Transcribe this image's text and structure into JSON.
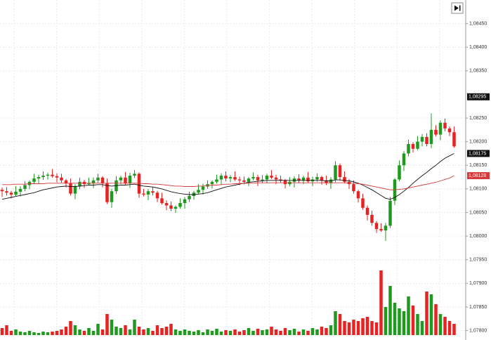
{
  "chart_data": {
    "type": "candlestick",
    "ylim": [
      1.0778,
      1.085
    ],
    "yticks": [
      {
        "value": 1.0845,
        "label": "1,08450"
      },
      {
        "value": 1.084,
        "label": "1,08400"
      },
      {
        "value": 1.0835,
        "label": "1,08350"
      },
      {
        "value": 1.0825,
        "label": "1,08250"
      },
      {
        "value": 1.082,
        "label": "1,08200"
      },
      {
        "value": 1.0815,
        "label": "1,08150"
      },
      {
        "value": 1.081,
        "label": "1,08100"
      },
      {
        "value": 1.0805,
        "label": "1,08050"
      },
      {
        "value": 1.08,
        "label": "1,08000"
      },
      {
        "value": 1.0795,
        "label": "1,07950"
      },
      {
        "value": 1.079,
        "label": "1,07900"
      },
      {
        "value": 1.0785,
        "label": "1,07850"
      },
      {
        "value": 1.078,
        "label": "1,07800"
      }
    ],
    "grid": true,
    "up_color": "#1f9a1f",
    "down_color": "#e62222",
    "candles": [
      [
        1.08098,
        1.08103,
        1.08083,
        1.08095
      ],
      [
        1.08095,
        1.08104,
        1.08086,
        1.08092
      ],
      [
        1.08092,
        1.08096,
        1.0808,
        1.08088
      ],
      [
        1.08088,
        1.08106,
        1.08085,
        1.08094
      ],
      [
        1.08094,
        1.08106,
        1.08084,
        1.081
      ],
      [
        1.081,
        1.08116,
        1.08095,
        1.08108
      ],
      [
        1.08108,
        1.08118,
        1.08099,
        1.08115
      ],
      [
        1.08115,
        1.08132,
        1.08111,
        1.08122
      ],
      [
        1.08122,
        1.0813,
        1.0811,
        1.08125
      ],
      [
        1.08125,
        1.08137,
        1.08119,
        1.08128
      ],
      [
        1.08128,
        1.08134,
        1.0812,
        1.0813
      ],
      [
        1.0813,
        1.08142,
        1.08124,
        1.08127
      ],
      [
        1.08127,
        1.08133,
        1.08114,
        1.08124
      ],
      [
        1.08124,
        1.08132,
        1.08113,
        1.08118
      ],
      [
        1.08118,
        1.08121,
        1.08103,
        1.08112
      ],
      [
        1.08112,
        1.08122,
        1.08086,
        1.0809
      ],
      [
        1.0809,
        1.0811,
        1.08078,
        1.08105
      ],
      [
        1.08105,
        1.08124,
        1.08099,
        1.08115
      ],
      [
        1.08115,
        1.08119,
        1.08102,
        1.0811
      ],
      [
        1.0811,
        1.08124,
        1.08107,
        1.08112
      ],
      [
        1.08112,
        1.08124,
        1.08102,
        1.08118
      ],
      [
        1.08118,
        1.08132,
        1.08113,
        1.08124
      ],
      [
        1.08124,
        1.08127,
        1.08103,
        1.08112
      ],
      [
        1.08112,
        1.08122,
        1.08068,
        1.08072
      ],
      [
        1.08072,
        1.081,
        1.0806,
        1.08095
      ],
      [
        1.08095,
        1.08127,
        1.08089,
        1.08118
      ],
      [
        1.08118,
        1.08128,
        1.0811,
        1.08124
      ],
      [
        1.08124,
        1.08136,
        1.08109,
        1.08112
      ],
      [
        1.08112,
        1.08134,
        1.08102,
        1.08128
      ],
      [
        1.08128,
        1.0814,
        1.08123,
        1.08132
      ],
      [
        1.08132,
        1.08135,
        1.08081,
        1.0809
      ],
      [
        1.0809,
        1.081,
        1.08084,
        1.08088
      ],
      [
        1.08088,
        1.081,
        1.08076,
        1.08095
      ],
      [
        1.08095,
        1.08104,
        1.08086,
        1.08092
      ],
      [
        1.08092,
        1.08096,
        1.08072,
        1.0808
      ],
      [
        1.0808,
        1.08092,
        1.08067,
        1.0807
      ],
      [
        1.0807,
        1.08076,
        1.08055,
        1.08065
      ],
      [
        1.08065,
        1.08073,
        1.08053,
        1.08058
      ],
      [
        1.08058,
        1.08065,
        1.08049,
        1.08062
      ],
      [
        1.08062,
        1.0808,
        1.08058,
        1.0807
      ],
      [
        1.0807,
        1.08083,
        1.08058,
        1.08078
      ],
      [
        1.08078,
        1.08094,
        1.08072,
        1.08085
      ],
      [
        1.08085,
        1.08096,
        1.08077,
        1.08092
      ],
      [
        1.08092,
        1.0811,
        1.08089,
        1.08098
      ],
      [
        1.08098,
        1.08111,
        1.08088,
        1.08105
      ],
      [
        1.08105,
        1.08118,
        1.081,
        1.0811
      ],
      [
        1.0811,
        1.08118,
        1.08101,
        1.08115
      ],
      [
        1.08115,
        1.0813,
        1.08111,
        1.0812
      ],
      [
        1.0812,
        1.08133,
        1.08108,
        1.08128
      ],
      [
        1.08128,
        1.08137,
        1.08116,
        1.08122
      ],
      [
        1.08122,
        1.08129,
        1.08114,
        1.08125
      ],
      [
        1.08125,
        1.08137,
        1.08117,
        1.0812
      ],
      [
        1.0812,
        1.08126,
        1.08108,
        1.08118
      ],
      [
        1.08118,
        1.08126,
        1.0811,
        1.08115
      ],
      [
        1.08115,
        1.08125,
        1.08106,
        1.08122
      ],
      [
        1.08122,
        1.08135,
        1.08118,
        1.08125
      ],
      [
        1.08125,
        1.0813,
        1.08106,
        1.08118
      ],
      [
        1.08118,
        1.08129,
        1.08112,
        1.0812
      ],
      [
        1.0812,
        1.08132,
        1.08112,
        1.08128
      ],
      [
        1.08128,
        1.0814,
        1.08121,
        1.08124
      ],
      [
        1.08124,
        1.0813,
        1.0811,
        1.0812
      ],
      [
        1.0812,
        1.08128,
        1.08113,
        1.08118
      ],
      [
        1.08118,
        1.08121,
        1.08101,
        1.0811
      ],
      [
        1.0811,
        1.08125,
        1.08106,
        1.08115
      ],
      [
        1.08115,
        1.08127,
        1.08103,
        1.08122
      ],
      [
        1.08122,
        1.08131,
        1.08112,
        1.08118
      ],
      [
        1.08118,
        1.08128,
        1.0811,
        1.08124
      ],
      [
        1.08124,
        1.08136,
        1.08113,
        1.08116
      ],
      [
        1.08116,
        1.08126,
        1.08106,
        1.0812
      ],
      [
        1.0812,
        1.08133,
        1.08115,
        1.08125
      ],
      [
        1.08125,
        1.08128,
        1.08109,
        1.08118
      ],
      [
        1.08118,
        1.08128,
        1.08108,
        1.08112
      ],
      [
        1.08112,
        1.08125,
        1.081,
        1.0812
      ],
      [
        1.0812,
        1.08159,
        1.08114,
        1.0815
      ],
      [
        1.0815,
        1.08154,
        1.08117,
        1.08125
      ],
      [
        1.08125,
        1.08137,
        1.08112,
        1.08115
      ],
      [
        1.08115,
        1.08121,
        1.081,
        1.0811
      ],
      [
        1.0811,
        1.08118,
        1.0809,
        1.08095
      ],
      [
        1.08095,
        1.08098,
        1.08071,
        1.0808
      ],
      [
        1.0808,
        1.0809,
        1.08056,
        1.0806
      ],
      [
        1.0806,
        1.08065,
        1.08033,
        1.08045
      ],
      [
        1.08045,
        1.08054,
        1.08022,
        1.08028
      ],
      [
        1.08028,
        1.08032,
        1.08007,
        1.08015
      ],
      [
        1.08015,
        1.08027,
        1.08009,
        1.08012
      ],
      [
        1.08012,
        1.08028,
        1.0799,
        1.08022
      ],
      [
        1.08022,
        1.08083,
        1.08017,
        1.08075
      ],
      [
        1.08075,
        1.08123,
        1.08066,
        1.0812
      ],
      [
        1.0812,
        1.0816,
        1.08116,
        1.0815
      ],
      [
        1.0815,
        1.0818,
        1.08138,
        1.08175
      ],
      [
        1.08175,
        1.08204,
        1.08169,
        1.08195
      ],
      [
        1.08195,
        1.08199,
        1.08177,
        1.08185
      ],
      [
        1.08185,
        1.08212,
        1.08182,
        1.082
      ],
      [
        1.082,
        1.08216,
        1.0819,
        1.0821
      ],
      [
        1.0821,
        1.08218,
        1.0819,
        1.08195
      ],
      [
        1.08195,
        1.0826,
        1.08186,
        1.08225
      ],
      [
        1.08225,
        1.08235,
        1.08211,
        1.08215
      ],
      [
        1.08215,
        1.08245,
        1.08203,
        1.0824
      ],
      [
        1.0824,
        1.08249,
        1.08222,
        1.08228
      ],
      [
        1.08228,
        1.08232,
        1.08212,
        1.0822
      ],
      [
        1.0822,
        1.08232,
        1.08187,
        1.0819
      ]
    ],
    "series": [
      {
        "color": "#111111",
        "values": [
          1.08078,
          1.0808,
          1.08082,
          1.08084,
          1.08086,
          1.08088,
          1.0809,
          1.08092,
          1.08095,
          1.08098,
          1.081,
          1.08102,
          1.08104,
          1.08105,
          1.08106,
          1.08105,
          1.08105,
          1.08106,
          1.08107,
          1.08108,
          1.08108,
          1.08109,
          1.08109,
          1.08107,
          1.08106,
          1.08107,
          1.08108,
          1.08108,
          1.08109,
          1.0811,
          1.08108,
          1.08106,
          1.08105,
          1.08104,
          1.08102,
          1.081,
          1.08097,
          1.08094,
          1.08092,
          1.0809,
          1.08089,
          1.08088,
          1.08088,
          1.08089,
          1.0809,
          1.08092,
          1.08095,
          1.08098,
          1.08101,
          1.08104,
          1.08106,
          1.08108,
          1.0811,
          1.08112,
          1.08114,
          1.08115,
          1.08116,
          1.08117,
          1.08118,
          1.08118,
          1.08118,
          1.08118,
          1.08118,
          1.08118,
          1.08118,
          1.08118,
          1.08118,
          1.08118,
          1.08118,
          1.08118,
          1.08118,
          1.08117,
          1.08117,
          1.08119,
          1.08119,
          1.08118,
          1.08117,
          1.08115,
          1.08112,
          1.08108,
          1.08103,
          1.08098,
          1.08092,
          1.08086,
          1.0808,
          1.08078,
          1.08082,
          1.08088,
          1.08095,
          1.08103,
          1.08112,
          1.0812,
          1.08128,
          1.08135,
          1.08143,
          1.0815,
          1.08158,
          1.08165,
          1.0817,
          1.08175
        ]
      },
      {
        "color": "#d43a3a",
        "values": [
          1.08109,
          1.08109,
          1.08109,
          1.0811,
          1.0811,
          1.0811,
          1.08111,
          1.08111,
          1.08111,
          1.08111,
          1.08112,
          1.08112,
          1.08112,
          1.08112,
          1.08112,
          1.08112,
          1.08112,
          1.08112,
          1.08112,
          1.08112,
          1.08112,
          1.08112,
          1.08112,
          1.08112,
          1.08112,
          1.08112,
          1.08112,
          1.08112,
          1.08112,
          1.08112,
          1.08112,
          1.08111,
          1.08111,
          1.0811,
          1.0811,
          1.08109,
          1.08108,
          1.08107,
          1.08106,
          1.08106,
          1.08105,
          1.08105,
          1.08105,
          1.08106,
          1.08106,
          1.08107,
          1.08108,
          1.08108,
          1.08109,
          1.0811,
          1.0811,
          1.08111,
          1.08111,
          1.08112,
          1.08112,
          1.08112,
          1.08113,
          1.08113,
          1.08113,
          1.08113,
          1.08113,
          1.08113,
          1.08113,
          1.08113,
          1.08113,
          1.08113,
          1.08113,
          1.08113,
          1.08113,
          1.08113,
          1.08113,
          1.08113,
          1.08113,
          1.08113,
          1.08113,
          1.08113,
          1.08112,
          1.08112,
          1.08111,
          1.0811,
          1.08108,
          1.08106,
          1.08104,
          1.08102,
          1.081,
          1.08098,
          1.08098,
          1.08099,
          1.081,
          1.08102,
          1.08104,
          1.08106,
          1.08108,
          1.0811,
          1.08112,
          1.08114,
          1.08117,
          1.0812,
          1.08123,
          1.08128
        ]
      }
    ],
    "volume_ylim": [
      0,
      100
    ],
    "volume": [
      10,
      14,
      6,
      8,
      5,
      4,
      6,
      4,
      3,
      5,
      4,
      5,
      6,
      8,
      12,
      20,
      14,
      8,
      6,
      10,
      6,
      16,
      8,
      30,
      22,
      12,
      10,
      14,
      8,
      22,
      12,
      8,
      10,
      6,
      14,
      10,
      12,
      16,
      8,
      6,
      8,
      6,
      5,
      7,
      4,
      8,
      6,
      9,
      5,
      7,
      6,
      8,
      5,
      7,
      10,
      6,
      9,
      7,
      8,
      12,
      8,
      6,
      10,
      7,
      9,
      5,
      8,
      6,
      10,
      8,
      12,
      10,
      14,
      34,
      30,
      20,
      18,
      22,
      20,
      24,
      26,
      20,
      18,
      92,
      40,
      70,
      46,
      38,
      34,
      55,
      42,
      30,
      20,
      62,
      58,
      44,
      30,
      26,
      20,
      16
    ],
    "price_labels": [
      {
        "value": 1.08295,
        "label": "1,08295",
        "color": "#111111"
      },
      {
        "value": 1.08175,
        "label": "1,08175",
        "color": "#111111"
      },
      {
        "value": 1.08128,
        "label": "1,08128",
        "color": "#d43a3a"
      }
    ]
  }
}
